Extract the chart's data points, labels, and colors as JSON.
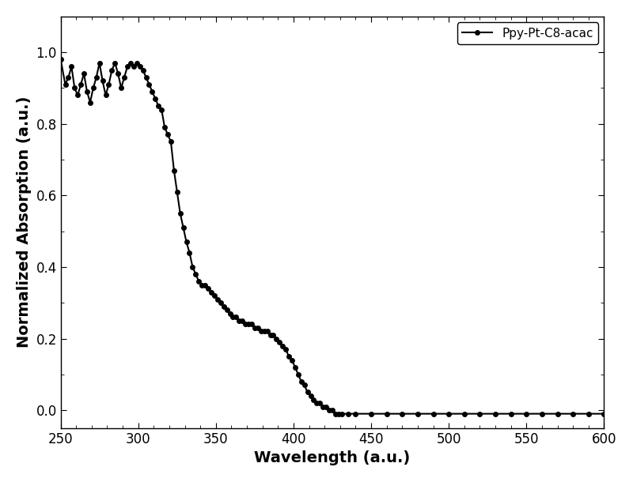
{
  "x": [
    250,
    253,
    255,
    257,
    259,
    261,
    263,
    265,
    267,
    269,
    271,
    273,
    275,
    277,
    279,
    281,
    283,
    285,
    287,
    289,
    291,
    293,
    295,
    297,
    299,
    301,
    303,
    305,
    307,
    309,
    311,
    313,
    315,
    317,
    319,
    321,
    323,
    325,
    327,
    329,
    331,
    333,
    335,
    337,
    339,
    341,
    343,
    345,
    347,
    349,
    351,
    353,
    355,
    357,
    359,
    361,
    363,
    365,
    367,
    369,
    371,
    373,
    375,
    377,
    379,
    381,
    383,
    385,
    387,
    389,
    391,
    393,
    395,
    397,
    399,
    401,
    403,
    405,
    407,
    409,
    411,
    413,
    415,
    417,
    419,
    421,
    423,
    425,
    427,
    429,
    431,
    435,
    440,
    450,
    460,
    470,
    480,
    490,
    500,
    510,
    520,
    530,
    540,
    550,
    560,
    570,
    580,
    590,
    600
  ],
  "y": [
    0.98,
    0.91,
    0.93,
    0.96,
    0.9,
    0.88,
    0.91,
    0.94,
    0.89,
    0.86,
    0.9,
    0.93,
    0.97,
    0.92,
    0.88,
    0.91,
    0.95,
    0.97,
    0.94,
    0.9,
    0.93,
    0.96,
    0.97,
    0.96,
    0.97,
    0.96,
    0.95,
    0.93,
    0.91,
    0.89,
    0.87,
    0.85,
    0.84,
    0.79,
    0.77,
    0.75,
    0.67,
    0.61,
    0.55,
    0.51,
    0.47,
    0.44,
    0.4,
    0.38,
    0.36,
    0.35,
    0.35,
    0.34,
    0.33,
    0.32,
    0.31,
    0.3,
    0.29,
    0.28,
    0.27,
    0.26,
    0.26,
    0.25,
    0.25,
    0.24,
    0.24,
    0.24,
    0.23,
    0.23,
    0.22,
    0.22,
    0.22,
    0.21,
    0.21,
    0.2,
    0.19,
    0.18,
    0.17,
    0.15,
    0.14,
    0.12,
    0.1,
    0.08,
    0.07,
    0.05,
    0.04,
    0.03,
    0.02,
    0.02,
    0.01,
    0.01,
    0.0,
    0.0,
    -0.01,
    -0.01,
    -0.01,
    -0.01,
    -0.01,
    -0.01,
    -0.01,
    -0.01,
    -0.01,
    -0.01,
    -0.01,
    -0.01,
    -0.01,
    -0.01,
    -0.01,
    -0.01,
    -0.01,
    -0.01,
    -0.01,
    -0.01,
    -0.01
  ],
  "xlabel": "Wavelength (a.u.)",
  "ylabel": "Normalized Absorption (a.u.)",
  "legend_label": "Ppy-Pt-C8-acac",
  "xlim": [
    250,
    600
  ],
  "ylim": [
    -0.05,
    1.1
  ],
  "xticks": [
    250,
    300,
    350,
    400,
    450,
    500,
    550,
    600
  ],
  "yticks": [
    0.0,
    0.2,
    0.4,
    0.6,
    0.8,
    1.0
  ],
  "line_color": "#000000",
  "marker": "o",
  "markersize": 4,
  "linewidth": 1.5,
  "background_color": "#ffffff",
  "title_fontsize": 12,
  "label_fontsize": 14,
  "tick_fontsize": 12
}
